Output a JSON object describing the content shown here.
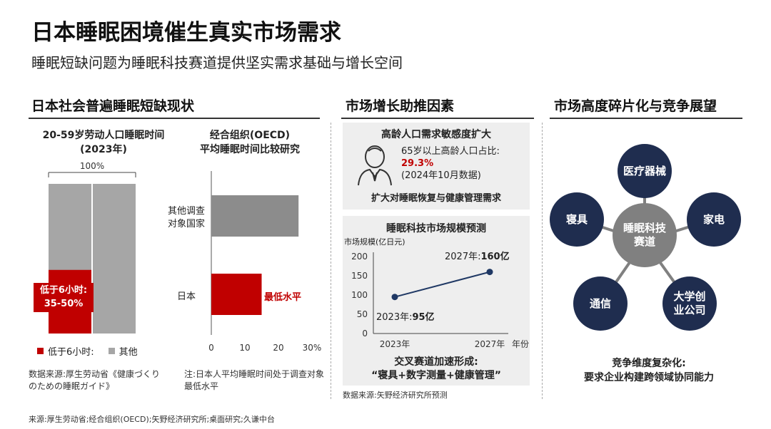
{
  "header": {
    "title": "日本睡眠困境催生真实市场需求",
    "subtitle": "睡眠短缺问题为睡眠科技赛道提供坚实需求基础与增长空间"
  },
  "left": {
    "section_title": "日本社会普遍睡眠短缺现状",
    "chart1": {
      "title_line1": "20-59岁劳动人口睡眠时间",
      "title_line2": "(2023年)",
      "top_label": "100%",
      "callout_line1": "低于6小时:",
      "callout_line2": "35-50%",
      "legend_red": "低于6小时:",
      "legend_gray": "其他"
    },
    "chart2": {
      "title_line1": "经合组织(OECD)",
      "title_line2": "平均睡眠时间比较研究",
      "cat1_line1": "其他调查",
      "cat1_line2": "对象国家",
      "cat2": "日本",
      "lowest_label": "最低水平",
      "ticks": [
        "0",
        "10",
        "20",
        "30%"
      ]
    },
    "source1_line1": "数据来源:厚生劳动省《健康づくり",
    "source1_line2": "のための睡眠ガイド》",
    "note2_line1": "注:日本人平均睡眠时间处于调查对象",
    "note2_line2": "最低水平"
  },
  "middle": {
    "section_title": "市场增长助推因素",
    "box1": {
      "title": "高龄人口需求敏感度扩大",
      "line1": "65岁以上高龄人口占比:",
      "highlight": "29.3%",
      "line3": "(2024年10月数据)",
      "conclusion": "扩大对睡眠恢复与健康管理需求"
    },
    "box2": {
      "title": "睡眠科技市场规模预测",
      "axis_title": "市场规模(亿日元)",
      "yticks": [
        "200",
        "150",
        "100",
        "50",
        "0"
      ],
      "xticks": [
        "2023年",
        "2027年"
      ],
      "x_unit": "年份",
      "label_2027_prefix": "2027年:",
      "label_2027_value": "160亿",
      "label_2023_prefix": "2023年:",
      "label_2023_value": "95亿",
      "conclusion_line1": "交叉赛道加速形成:",
      "conclusion_line2": "“寝具+数字测量+健康管理”"
    },
    "source": "数据来源:矢野经济研究所预测"
  },
  "right": {
    "section_title": "市场高度碎片化与竞争展望",
    "center_line1": "睡眠科技",
    "center_line2": "赛道",
    "nodes": {
      "medical": "医疗器械",
      "bedding": "寝具",
      "appliance": "家电",
      "telecom": "通信",
      "university_line1": "大学创",
      "university_line2": "业公司"
    },
    "conclusion_line1": "竞争维度复杂化:",
    "conclusion_line2": "要求企业构建跨领域协同能力"
  },
  "footer": {
    "source": "来源:厚生劳动省;经合组织(OECD);矢野经济研究所;桌面研究;久谦中台"
  },
  "colors": {
    "red": "#c00000",
    "gray": "#a6a6a6",
    "bar_gray": "#8c8c8c",
    "navy": "#1f2d4f",
    "hub_gray": "#808080",
    "line_navy": "#1f3864"
  },
  "chart_data": [
    {
      "type": "bar",
      "stacked": true,
      "categories": [
        "20-59岁劳动人口"
      ],
      "series": [
        {
          "name": "低于6小时:",
          "values": [
            42.5
          ]
        },
        {
          "name": "其他",
          "values": [
            57.5
          ]
        }
      ],
      "ylim": [
        0,
        100
      ],
      "title": "20-59岁劳动人口睡眠时间(2023年)"
    },
    {
      "type": "bar",
      "orientation": "horizontal",
      "categories": [
        "其他调查对象国家",
        "日本"
      ],
      "values": [
        26,
        15
      ],
      "xlim": [
        0,
        30
      ],
      "title": "经合组织(OECD)平均睡眠时间比较研究"
    },
    {
      "type": "line",
      "x": [
        "2023年",
        "2027年"
      ],
      "values": [
        95,
        160
      ],
      "ylim": [
        0,
        200
      ],
      "ylabel": "市场规模(亿日元)",
      "xlabel": "年份",
      "title": "睡眠科技市场规模预测"
    }
  ]
}
